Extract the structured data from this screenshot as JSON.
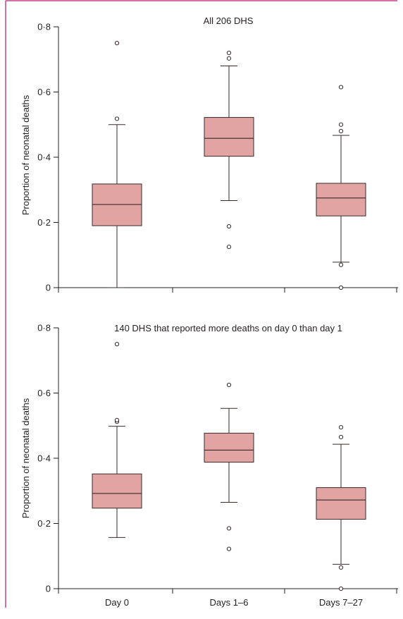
{
  "colors": {
    "frame": "#c0468c",
    "box_fill": "#e2a4a3",
    "box_stroke": "#3a2a2a",
    "axis": "#231f20"
  },
  "chart_data": [
    {
      "type": "box",
      "title": "All 206 DHS",
      "ylabel": "Proportion of neonatal deaths",
      "ylim": [
        0,
        0.8
      ],
      "yticks": [
        0,
        0.2,
        0.4,
        0.6,
        0.8
      ],
      "ytick_labels": [
        "0",
        "0·2",
        "0·4",
        "0·6",
        "0·8"
      ],
      "categories": [
        "Day 0",
        "Days 1–6",
        "Days 7–27"
      ],
      "boxes": [
        {
          "category": "Day 0",
          "whisker_low": 0.0,
          "q1": 0.19,
          "median": 0.255,
          "q3": 0.318,
          "whisker_high": 0.5,
          "outliers": [
            0.518,
            0.75
          ]
        },
        {
          "category": "Days 1–6",
          "whisker_low": 0.267,
          "q1": 0.403,
          "median": 0.458,
          "q3": 0.522,
          "whisker_high": 0.68,
          "outliers": [
            0.125,
            0.188,
            0.703,
            0.72
          ]
        },
        {
          "category": "Days 7–27",
          "whisker_low": 0.078,
          "q1": 0.22,
          "median": 0.275,
          "q3": 0.32,
          "whisker_high": 0.467,
          "outliers": [
            0.0,
            0.07,
            0.48,
            0.5,
            0.615
          ]
        }
      ]
    },
    {
      "type": "box",
      "title": "140 DHS that reported more deaths on day 0 than day 1",
      "ylabel": "Proportion of neonatal deaths",
      "ylim": [
        0,
        0.8
      ],
      "yticks": [
        0,
        0.2,
        0.4,
        0.6,
        0.8
      ],
      "ytick_labels": [
        "0",
        "0·2",
        "0·4",
        "0·6",
        "0·8"
      ],
      "categories": [
        "Day 0",
        "Days 1–6",
        "Days 7–27"
      ],
      "boxes": [
        {
          "category": "Day 0",
          "whisker_low": 0.157,
          "q1": 0.247,
          "median": 0.292,
          "q3": 0.352,
          "whisker_high": 0.498,
          "outliers": [
            0.512,
            0.517,
            0.75
          ]
        },
        {
          "category": "Days 1–6",
          "whisker_low": 0.265,
          "q1": 0.388,
          "median": 0.425,
          "q3": 0.477,
          "whisker_high": 0.553,
          "outliers": [
            0.122,
            0.185,
            0.625
          ]
        },
        {
          "category": "Days 7–27",
          "whisker_low": 0.075,
          "q1": 0.213,
          "median": 0.272,
          "q3": 0.31,
          "whisker_high": 0.443,
          "outliers": [
            0.0,
            0.065,
            0.465,
            0.495
          ]
        }
      ]
    }
  ]
}
